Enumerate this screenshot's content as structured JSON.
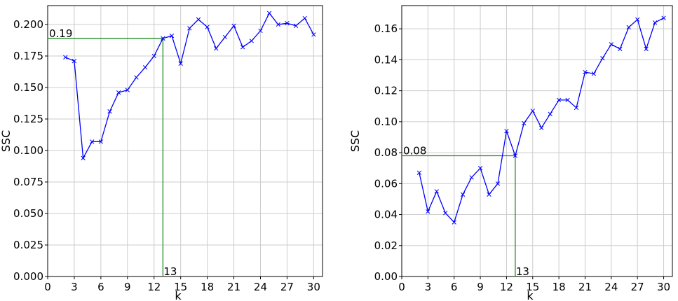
{
  "chart_data": [
    {
      "type": "line",
      "xlabel": "k",
      "ylabel": "SSC",
      "xlim": [
        0,
        31
      ],
      "ylim": [
        0,
        0.215
      ],
      "x_ticks": [
        0,
        3,
        6,
        9,
        12,
        15,
        18,
        21,
        24,
        27,
        30
      ],
      "y_ticks": [
        0.0,
        0.025,
        0.05,
        0.075,
        0.1,
        0.125,
        0.15,
        0.175,
        0.2
      ],
      "y_tick_labels": [
        "0.000",
        "0.025",
        "0.050",
        "0.075",
        "0.100",
        "0.125",
        "0.150",
        "0.175",
        "0.200"
      ],
      "grid": true,
      "series": [
        {
          "color": "#0000ff",
          "marker": "x",
          "x": [
            2,
            3,
            4,
            5,
            6,
            7,
            8,
            9,
            10,
            11,
            12,
            13,
            14,
            15,
            16,
            17,
            18,
            19,
            20,
            21,
            22,
            23,
            24,
            25,
            26,
            27,
            28,
            29,
            30
          ],
          "values": [
            0.174,
            0.171,
            0.094,
            0.107,
            0.107,
            0.131,
            0.146,
            0.148,
            0.158,
            0.166,
            0.175,
            0.189,
            0.191,
            0.169,
            0.197,
            0.204,
            0.198,
            0.181,
            0.19,
            0.199,
            0.182,
            0.187,
            0.195,
            0.209,
            0.2,
            0.201,
            0.199,
            0.205,
            0.192
          ]
        }
      ],
      "annotation": {
        "color": "#228b22",
        "x": 13,
        "y": 0.189,
        "value_label": "0.19",
        "x_label": "13"
      }
    },
    {
      "type": "line",
      "xlabel": "k",
      "ylabel": "SSC",
      "xlim": [
        0,
        31
      ],
      "ylim": [
        0,
        0.175
      ],
      "x_ticks": [
        0,
        3,
        6,
        9,
        12,
        15,
        18,
        21,
        24,
        27,
        30
      ],
      "y_ticks": [
        0.0,
        0.02,
        0.04,
        0.06,
        0.08,
        0.1,
        0.12,
        0.14,
        0.16
      ],
      "y_tick_labels": [
        "0.00",
        "0.02",
        "0.04",
        "0.06",
        "0.08",
        "0.10",
        "0.12",
        "0.14",
        "0.16"
      ],
      "grid": true,
      "series": [
        {
          "color": "#0000ff",
          "marker": "x",
          "x": [
            2,
            3,
            4,
            5,
            6,
            7,
            8,
            9,
            10,
            11,
            12,
            13,
            14,
            15,
            16,
            17,
            18,
            19,
            20,
            21,
            22,
            23,
            24,
            25,
            26,
            27,
            28,
            29,
            30
          ],
          "values": [
            0.067,
            0.042,
            0.055,
            0.041,
            0.035,
            0.053,
            0.064,
            0.07,
            0.053,
            0.06,
            0.094,
            0.078,
            0.099,
            0.107,
            0.096,
            0.105,
            0.114,
            0.114,
            0.109,
            0.132,
            0.131,
            0.141,
            0.15,
            0.147,
            0.161,
            0.166,
            0.147,
            0.164,
            0.167
          ]
        }
      ],
      "annotation": {
        "color": "#228b22",
        "x": 13,
        "y": 0.078,
        "value_label": "0.08",
        "x_label": "13"
      }
    }
  ]
}
